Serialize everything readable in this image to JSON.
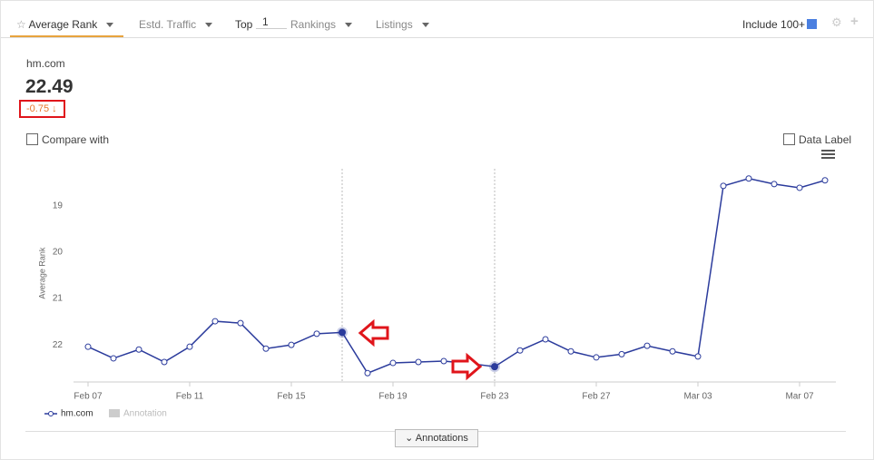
{
  "toolbar": {
    "tabs": [
      "Average Rank",
      "Estd. Traffic"
    ],
    "top_label": "Top",
    "top_value": "1",
    "rankings": "Rankings",
    "listings": "Listings",
    "include": "Include 100+"
  },
  "summary": {
    "domain": "hm.com",
    "value": "22.49",
    "change": "-0.75",
    "compare": "Compare with",
    "data_label": "Data Label"
  },
  "annotations_button": "Annotations",
  "chart_data": {
    "type": "line",
    "y_label": "Average Rank",
    "categories": [
      "Feb 07",
      null,
      null,
      null,
      "Feb 11",
      null,
      null,
      null,
      "Feb 15",
      null,
      null,
      null,
      "Feb 19",
      null,
      null,
      null,
      "Feb 23",
      null,
      null,
      null,
      "Feb 27",
      null,
      null,
      null,
      "Mar 03",
      null,
      null,
      null,
      "Mar 07",
      null
    ],
    "series": [
      {
        "name": "hm.com",
        "color": "#2b3b9c",
        "values": [
          22.04,
          22.29,
          22.1,
          22.37,
          22.04,
          21.49,
          21.53,
          22.08,
          22.0,
          21.76,
          21.73,
          22.61,
          22.39,
          22.37,
          22.35,
          22.4,
          22.47,
          22.12,
          21.88,
          22.14,
          22.27,
          22.2,
          22.02,
          22.14,
          22.25,
          18.57,
          18.41,
          18.53,
          18.61,
          18.45
        ]
      }
    ],
    "legend_extra": "Annotation",
    "ylim": [
      22.8,
      18.2
    ],
    "yticks": [
      19,
      20,
      21,
      22
    ],
    "grid": false
  }
}
